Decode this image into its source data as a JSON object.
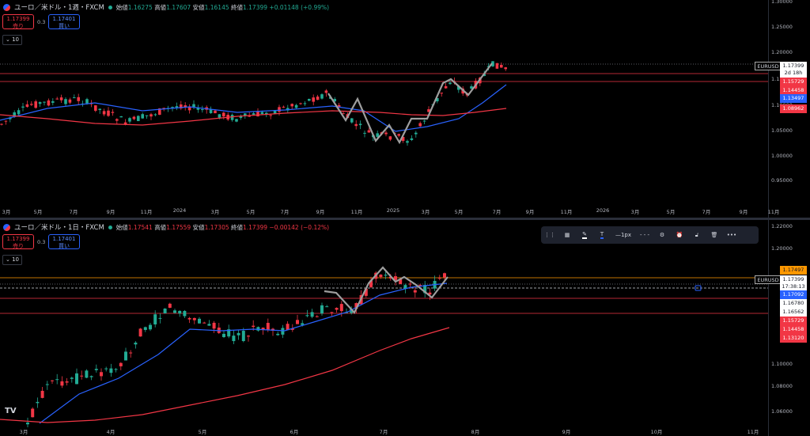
{
  "top": {
    "title": "ユーロ／米ドル・1週・FXCM",
    "ohlc": [
      {
        "label": "始値",
        "value": "1.16275"
      },
      {
        "label": "高値",
        "value": "1.17607"
      },
      {
        "label": "安値",
        "value": "1.16145"
      },
      {
        "label": "終値",
        "value": "1.17399"
      }
    ],
    "change": "+0.01148 (+0.99%)",
    "sell": {
      "price": "1.17399",
      "label": "売り"
    },
    "spread": "0.3",
    "buy": {
      "price": "1.17401",
      "label": "買い"
    },
    "volume": "10",
    "y_ticks": [
      "1.30000",
      "1.25000",
      "1.20000",
      "1.15000",
      "1.10000",
      "1.05000",
      "1.00000",
      "0.95000"
    ],
    "x_ticks": [
      "3月",
      "5月",
      "7月",
      "9月",
      "11月",
      "2024",
      "3月",
      "5月",
      "7月",
      "9月",
      "11月",
      "2025",
      "3月",
      "5月",
      "7月",
      "9月",
      "11月",
      "2026",
      "3月",
      "5月",
      "7月",
      "9月",
      "11月"
    ],
    "symbol_tag": "EURUSD",
    "price_tags": [
      {
        "text": "1.17399",
        "sub": "2d 18h",
        "bg": "#ffffff",
        "fg": "#131722"
      },
      {
        "text": "1.15729",
        "bg": "#f23645",
        "fg": "#ffffff"
      },
      {
        "text": "1.14458",
        "bg": "#f23645",
        "fg": "#ffffff"
      },
      {
        "text": "1.13497",
        "bg": "#2962ff",
        "fg": "#ffffff"
      },
      {
        "text": "1.08962",
        "bg": "#f23645",
        "fg": "#ffffff"
      }
    ]
  },
  "bottom": {
    "title": "ユーロ／米ドル・1日・FXCM",
    "ohlc": [
      {
        "label": "始値",
        "value": "1.17541"
      },
      {
        "label": "高値",
        "value": "1.17559"
      },
      {
        "label": "安値",
        "value": "1.17305"
      },
      {
        "label": "終値",
        "value": "1.17399"
      }
    ],
    "change": "−0.00142 (−0.12%)",
    "sell": {
      "price": "1.17399",
      "label": "売り"
    },
    "spread": "0.3",
    "buy": {
      "price": "1.17401",
      "label": "買い"
    },
    "volume": "10",
    "y_ticks": [
      "1.22000",
      "1.20000",
      "1.10000",
      "1.08000",
      "1.06000"
    ],
    "x_ticks": [
      "3月",
      "4月",
      "5月",
      "6月",
      "7月",
      "8月",
      "9月",
      "10月",
      "11月"
    ],
    "symbol_tag": "EURUSD",
    "price_tags": [
      {
        "text": "1.17497",
        "bg": "#ff9800",
        "fg": "#131722"
      },
      {
        "text": "1.17399",
        "sub": "17:38:13",
        "bg": "#ffffff",
        "fg": "#131722"
      },
      {
        "text": "1.17092",
        "bg": "#2962ff",
        "fg": "#ffffff"
      },
      {
        "text": "1.16780",
        "bg": "#ffffff",
        "fg": "#131722"
      },
      {
        "text": "1.16562",
        "bg": "#ffffff",
        "fg": "#131722"
      },
      {
        "text": "1.15729",
        "bg": "#f23645",
        "fg": "#ffffff"
      },
      {
        "text": "1.14458",
        "bg": "#f23645",
        "fg": "#ffffff"
      },
      {
        "text": "1.13120",
        "bg": "#f23645",
        "fg": "#ffffff"
      }
    ],
    "toolbar": {
      "width_label": "1px"
    }
  },
  "colors": {
    "up": "#22ab94",
    "down": "#f23645",
    "ma_fast": "#2962ff",
    "ma_slow": "#f23645",
    "zigzag": "#9e9e9e",
    "hline": "#f23645"
  }
}
